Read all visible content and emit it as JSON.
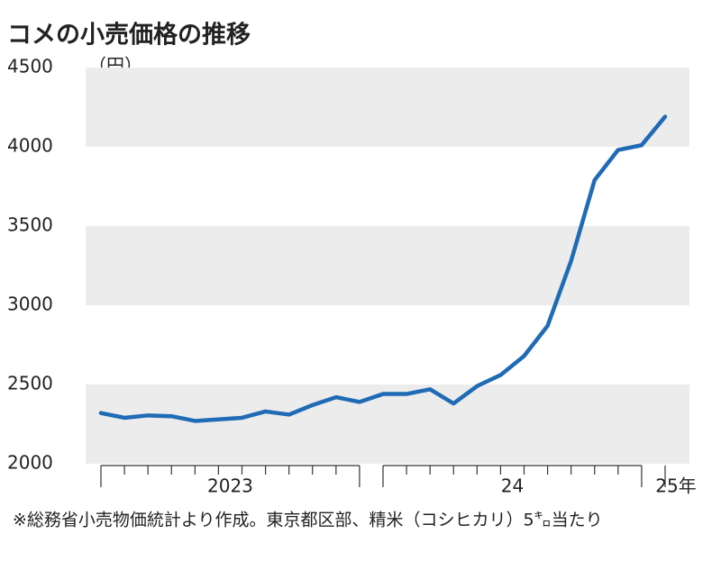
{
  "chart_data": {
    "type": "line",
    "title": "コメの小売価格の推移",
    "y_unit": "（円）",
    "note": "※総務省小売物価統計より作成。東京都区部、精米（コシヒカリ）5㌔当たり",
    "categories": [
      null,
      null,
      null,
      null,
      null,
      null,
      null,
      null,
      null,
      null,
      null,
      null,
      null,
      null,
      null,
      null,
      null,
      null,
      null,
      null,
      null,
      null,
      null,
      null,
      "25年"
    ],
    "category_groups": [
      "2023",
      "24"
    ],
    "series": [
      {
        "name": "コメの小売価格",
        "color": "#1f6bb5",
        "values": [
          2320,
          2290,
          2305,
          2300,
          2270,
          2280,
          2290,
          2330,
          2310,
          2370,
          2420,
          2390,
          2440,
          2440,
          2470,
          2380,
          2490,
          2560,
          2680,
          2870,
          3280,
          3790,
          3980,
          4010,
          4190
        ]
      }
    ],
    "ylim": [
      2000,
      4500
    ],
    "yticks": [
      2000,
      2500,
      3000,
      3500,
      4000,
      4500
    ],
    "bands": true
  }
}
